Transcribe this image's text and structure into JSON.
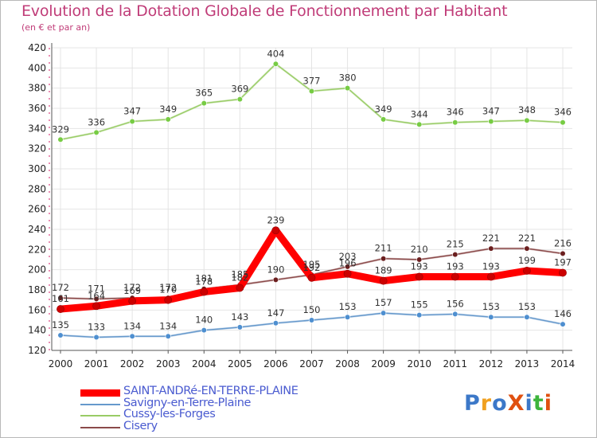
{
  "title": "Evolution de la Dotation Globale de Fonctionnement par Habitant",
  "subtitle": "(en € et par an)",
  "logo": {
    "text": "ProXiti",
    "colors": [
      "#3c78c8",
      "#f0a020",
      "#3c78c8",
      "#e05010",
      "#3c78c8",
      "#3cb43c",
      "#e05010"
    ]
  },
  "chart_data": {
    "type": "line",
    "title": "Evolution de la Dotation Globale de Fonctionnement par Habitant",
    "subtitle": "(en € et par an)",
    "xlabel": "",
    "ylabel": "",
    "x": [
      "2000",
      "2001",
      "2002",
      "2003",
      "2004",
      "2005",
      "2006",
      "2007",
      "2008",
      "2009",
      "2010",
      "2011",
      "2012",
      "2013",
      "2014"
    ],
    "y_ticks": [
      120,
      140,
      160,
      180,
      200,
      220,
      240,
      260,
      280,
      300,
      320,
      340,
      360,
      380,
      400,
      420
    ],
    "ylim": [
      120,
      420
    ],
    "grid": true,
    "legend_position": "bottom-left",
    "series": [
      {
        "name": "SAINT-ANDRé-EN-TERRE-PLAINE",
        "color": "#ff0000",
        "marker": "#cc0000",
        "width": 9,
        "values": [
          161,
          164,
          169,
          170,
          178,
          182,
          239,
          192,
          196,
          189,
          193,
          193,
          193,
          199,
          197
        ],
        "labels": [
          "161",
          "164",
          "169",
          "170",
          "178",
          "182",
          "239",
          "192",
          "196",
          "189",
          "193",
          "193",
          "193",
          "199",
          "197"
        ]
      },
      {
        "name": "Savigny-en-Terre-Plaine",
        "color": "#6699cc",
        "marker": "#4e8fd0",
        "width": 1.4,
        "values": [
          135,
          133,
          134,
          134,
          140,
          143,
          147,
          150,
          153,
          157,
          155,
          156,
          153,
          153,
          146
        ],
        "labels": [
          "135",
          "133",
          "134",
          "134",
          "140",
          "143",
          "147",
          "150",
          "153",
          "157",
          "155",
          "156",
          "153",
          "153",
          "146"
        ]
      },
      {
        "name": "Cussy-les-Forges",
        "color": "#99cc66",
        "marker": "#77cc44",
        "width": 1.4,
        "values": [
          329,
          336,
          347,
          349,
          365,
          369,
          404,
          377,
          380,
          349,
          344,
          346,
          347,
          348,
          346
        ],
        "labels": [
          "329",
          "336",
          "347",
          "349",
          "365",
          "369",
          "404",
          "377",
          "380",
          "349",
          "344",
          "346",
          "347",
          "348",
          "346"
        ]
      },
      {
        "name": "Cisery",
        "color": "#8b4a4a",
        "marker": "#6b1f1f",
        "width": 1.4,
        "values": [
          172,
          171,
          172,
          172,
          181,
          185,
          190,
          195,
          203,
          211,
          210,
          215,
          221,
          221,
          216
        ],
        "labels": [
          "172",
          "171",
          "172",
          "172",
          "181",
          "185",
          "190",
          "195",
          "203",
          "211",
          "210",
          "215",
          "221",
          "221",
          "216"
        ]
      }
    ]
  }
}
